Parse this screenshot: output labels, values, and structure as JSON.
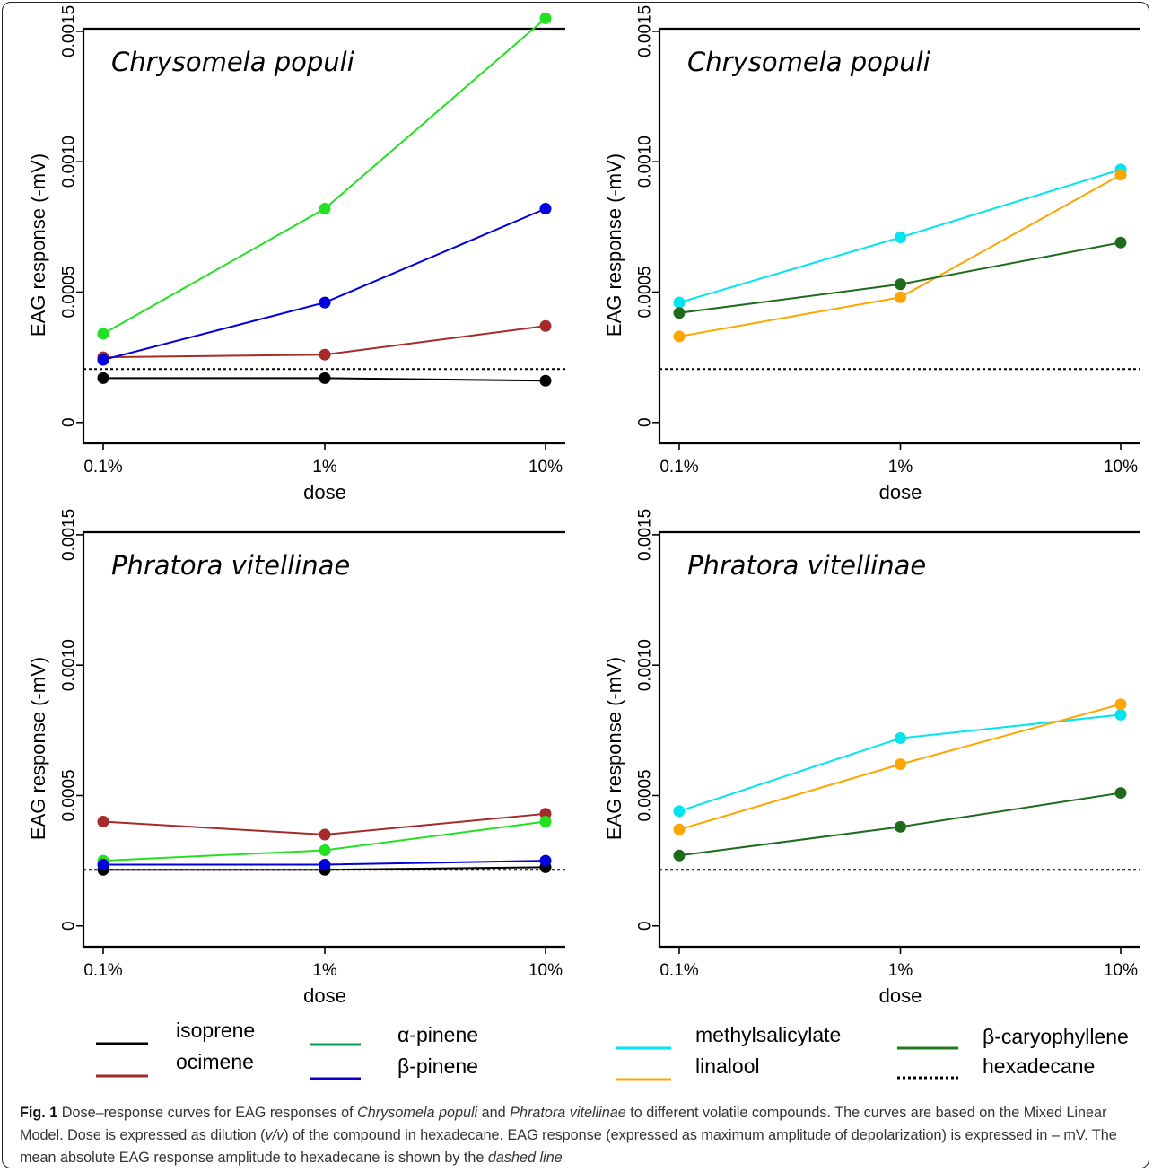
{
  "legend": [
    {
      "label": "isoprene",
      "color": "#000000",
      "style": "solid"
    },
    {
      "label": "ocimene",
      "color": "#A52A2A",
      "style": "solid"
    },
    {
      "label": "α-pinene",
      "color": "#00A050",
      "style": "solid"
    },
    {
      "label": "β-pinene",
      "color": "#0000CD",
      "style": "solid"
    },
    {
      "label": "methylsalicylate",
      "color": "#00E5EE",
      "style": "solid"
    },
    {
      "label": "linalool",
      "color": "#FFA500",
      "style": "solid"
    },
    {
      "label": "β-caryophyllene",
      "color": "#1E7B1E",
      "style": "solid"
    },
    {
      "label": "hexadecane",
      "color": "#000000",
      "style": "dotted"
    }
  ],
  "caption": {
    "fig_label": "Fig. 1",
    "t1": " Dose–response curves for EAG responses of ",
    "sp1": "Chrysomela populi",
    "t2": " and ",
    "sp2": "Phratora vitellinae",
    "t3": " to different volatile compounds. The curves are based on the Mixed Linear Model. Dose is expressed as dilution (",
    "vv": "v/v",
    "t4": ") of the compound in hexadecane. EAG response (expressed as maximum amplitude of depolarization) is expressed in – mV. The mean absolute EAG response amplitude to hexadecane is shown by the ",
    "dl": "dashed line"
  },
  "chart_data": [
    {
      "type": "line",
      "title": "Chrysomela populi",
      "xlabel": "dose",
      "ylabel": "EAG response (-mV)",
      "categories": [
        "0.1%",
        "1%",
        "10%"
      ],
      "ylim": [
        -8e-05,
        0.00151
      ],
      "yticks": [
        "0",
        "0.0005",
        "0.0010",
        "0.0015"
      ],
      "hline": 0.000205,
      "series": [
        {
          "name": "isoprene",
          "color": "#000000",
          "values": [
            0.00017,
            0.00017,
            0.00016
          ]
        },
        {
          "name": "ocimene",
          "color": "#A52A2A",
          "values": [
            0.00025,
            0.00026,
            0.00037
          ]
        },
        {
          "name": "α-pinene",
          "color": "#22E022",
          "values": [
            0.00034,
            0.00082,
            0.00155
          ]
        },
        {
          "name": "β-pinene",
          "color": "#0000DD",
          "values": [
            0.00024,
            0.00046,
            0.00082
          ]
        }
      ]
    },
    {
      "type": "line",
      "title": "Chrysomela populi",
      "xlabel": "dose",
      "ylabel": "EAG response (-mV)",
      "categories": [
        "0.1%",
        "1%",
        "10%"
      ],
      "ylim": [
        -8e-05,
        0.00151
      ],
      "yticks": [
        "0",
        "0.0005",
        "0.0010",
        "0.0015"
      ],
      "hline": 0.000205,
      "series": [
        {
          "name": "methylsalicylate",
          "color": "#00E5EE",
          "values": [
            0.00046,
            0.00071,
            0.00097
          ]
        },
        {
          "name": "linalool",
          "color": "#FFA500",
          "values": [
            0.00033,
            0.00048,
            0.00095
          ]
        },
        {
          "name": "β-caryophyllene",
          "color": "#1E6B1E",
          "values": [
            0.00042,
            0.00053,
            0.00069
          ]
        }
      ]
    },
    {
      "type": "line",
      "title": "Phratora vitellinae",
      "xlabel": "dose",
      "ylabel": "EAG response (-mV)",
      "categories": [
        "0.1%",
        "1%",
        "10%"
      ],
      "ylim": [
        -8e-05,
        0.00151
      ],
      "yticks": [
        "0",
        "0.0005",
        "0.0010",
        "0.0015"
      ],
      "hline": 0.000215,
      "series": [
        {
          "name": "isoprene",
          "color": "#000000",
          "values": [
            0.000215,
            0.000215,
            0.000225
          ]
        },
        {
          "name": "ocimene",
          "color": "#A52A2A",
          "values": [
            0.0004,
            0.00035,
            0.00043
          ]
        },
        {
          "name": "α-pinene",
          "color": "#22E022",
          "values": [
            0.00025,
            0.00029,
            0.0004
          ]
        },
        {
          "name": "β-pinene",
          "color": "#0000DD",
          "values": [
            0.000235,
            0.000235,
            0.00025
          ]
        }
      ]
    },
    {
      "type": "line",
      "title": "Phratora vitellinae",
      "xlabel": "dose",
      "ylabel": "EAG response (-mV)",
      "categories": [
        "0.1%",
        "1%",
        "10%"
      ],
      "ylim": [
        -8e-05,
        0.00151
      ],
      "yticks": [
        "0",
        "0.0005",
        "0.0010",
        "0.0015"
      ],
      "hline": 0.000215,
      "series": [
        {
          "name": "methylsalicylate",
          "color": "#00E5EE",
          "values": [
            0.00044,
            0.00072,
            0.00081
          ]
        },
        {
          "name": "linalool",
          "color": "#FFA500",
          "values": [
            0.00037,
            0.00062,
            0.00085
          ]
        },
        {
          "name": "β-caryophyllene",
          "color": "#1E6B1E",
          "values": [
            0.00027,
            0.00038,
            0.00051
          ]
        }
      ]
    }
  ]
}
